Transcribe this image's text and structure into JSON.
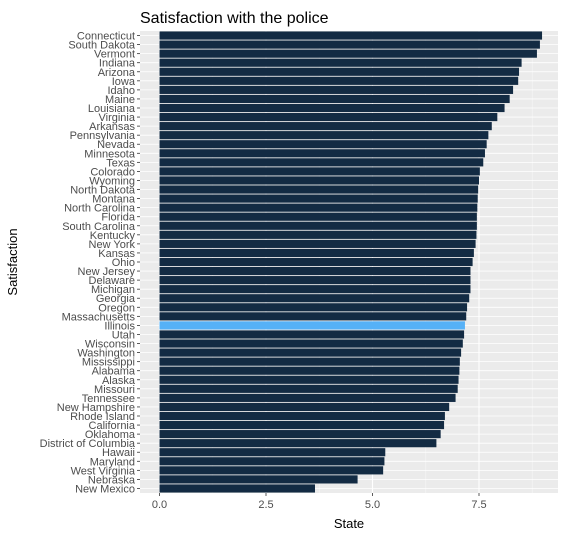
{
  "chart_data": {
    "type": "bar",
    "orientation": "horizontal",
    "title": "Satisfaction with the police",
    "xlabel": "State",
    "ylabel": "Satisfaction",
    "xlim": [
      0,
      9.2
    ],
    "xticks": [
      "0.0",
      "2.5",
      "5.0",
      "7.5"
    ],
    "xtick_values": [
      0,
      2.5,
      5,
      7.5
    ],
    "grid": true,
    "legend": "none",
    "colors": {
      "bar": "#132b43",
      "highlight": "#56b1f7",
      "panel": "#ebebeb",
      "grid": "#ffffff"
    },
    "highlight": "Illinois",
    "categories": [
      "Connecticut",
      "South Dakota",
      "Vermont",
      "Indiana",
      "Arizona",
      "Iowa",
      "Idaho",
      "Maine",
      "Louisiana",
      "Virginia",
      "Arkansas",
      "Pennsylvania",
      "Nevada",
      "Minnesota",
      "Texas",
      "Colorado",
      "Wyoming",
      "North Dakota",
      "Montana",
      "North Carolina",
      "Florida",
      "South Carolina",
      "Kentucky",
      "New York",
      "Kansas",
      "Ohio",
      "New Jersey",
      "Delaware",
      "Michigan",
      "Georgia",
      "Oregon",
      "Massachusetts",
      "Illinois",
      "Utah",
      "Wisconsin",
      "Washington",
      "Mississippi",
      "Alabama",
      "Alaska",
      "Missouri",
      "Tennessee",
      "New Hampshire",
      "Rhode Island",
      "California",
      "Oklahoma",
      "District of Columbia",
      "Hawaii",
      "Maryland",
      "West Virginia",
      "Nebraska",
      "New Mexico"
    ],
    "values": [
      8.98,
      8.93,
      8.86,
      8.5,
      8.44,
      8.42,
      8.3,
      8.22,
      8.1,
      7.93,
      7.8,
      7.72,
      7.68,
      7.64,
      7.6,
      7.52,
      7.5,
      7.48,
      7.47,
      7.46,
      7.45,
      7.45,
      7.44,
      7.42,
      7.38,
      7.35,
      7.3,
      7.3,
      7.3,
      7.27,
      7.22,
      7.2,
      7.17,
      7.15,
      7.12,
      7.08,
      7.05,
      7.04,
      7.02,
      7.0,
      6.95,
      6.8,
      6.7,
      6.68,
      6.6,
      6.5,
      5.3,
      5.28,
      5.25,
      4.65,
      3.65
    ]
  }
}
